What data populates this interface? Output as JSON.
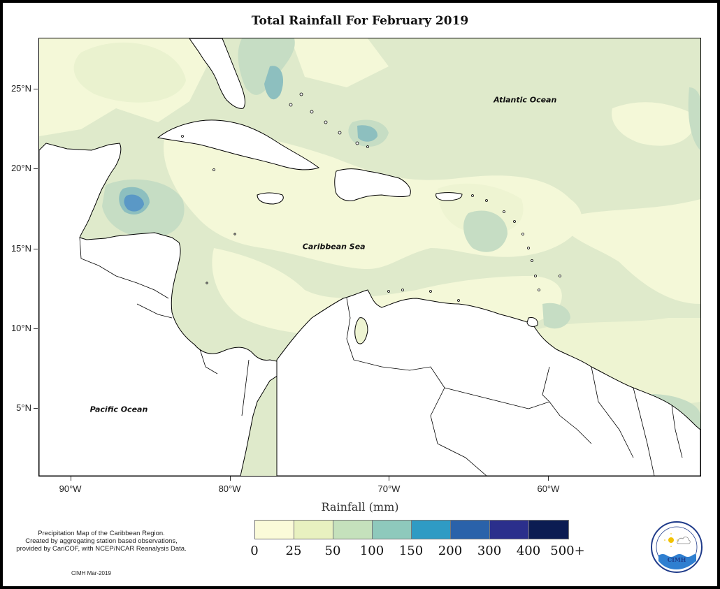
{
  "title": "Total Rainfall For February 2019",
  "map": {
    "extent": {
      "lon": [
        -92,
        -50.5
      ],
      "lat": [
        0.8,
        28.2
      ]
    },
    "region_labels": [
      {
        "name": "atlantic",
        "text": "Atlantic Ocean",
        "lon": -61.5,
        "lat": 24.2
      },
      {
        "name": "caribbean",
        "text": "Caribbean Sea",
        "lon": -73.5,
        "lat": 15.0
      },
      {
        "name": "pacific",
        "text": "Pacific Ocean",
        "lon": -87,
        "lat": 4.8
      }
    ]
  },
  "axes": {
    "latitude_ticks": [
      {
        "label": "25°N",
        "value": 25
      },
      {
        "label": "20°N",
        "value": 20
      },
      {
        "label": "15°N",
        "value": 15
      },
      {
        "label": "10°N",
        "value": 10
      },
      {
        "label": "5°N",
        "value": 5
      }
    ],
    "longitude_ticks": [
      {
        "label": "90°W",
        "value": -90
      },
      {
        "label": "80°W",
        "value": -80
      },
      {
        "label": "70°W",
        "value": -70
      },
      {
        "label": "60°W",
        "value": -60
      }
    ],
    "xlabel": "Rainfall (mm)"
  },
  "legend": {
    "ticks": [
      "0",
      "25",
      "50",
      "100",
      "150",
      "200",
      "300",
      "400",
      "500+"
    ],
    "colors": [
      "#fbfbd9",
      "#e8f1c0",
      "#c5e1bc",
      "#8ec9bc",
      "#2f9bc4",
      "#2a62aa",
      "#2b2f8c",
      "#0c1c52"
    ]
  },
  "description": [
    "Precipitation Map of the Caribbean Region.",
    "Created by aggregating station based observations,",
    "provided by CariCOF, with NCEP/NCAR Reanalysis Data."
  ],
  "credit": "CIMH Mar-2019",
  "logo": {
    "text": "CIMH",
    "icon": "cimh-logo-icon"
  }
}
